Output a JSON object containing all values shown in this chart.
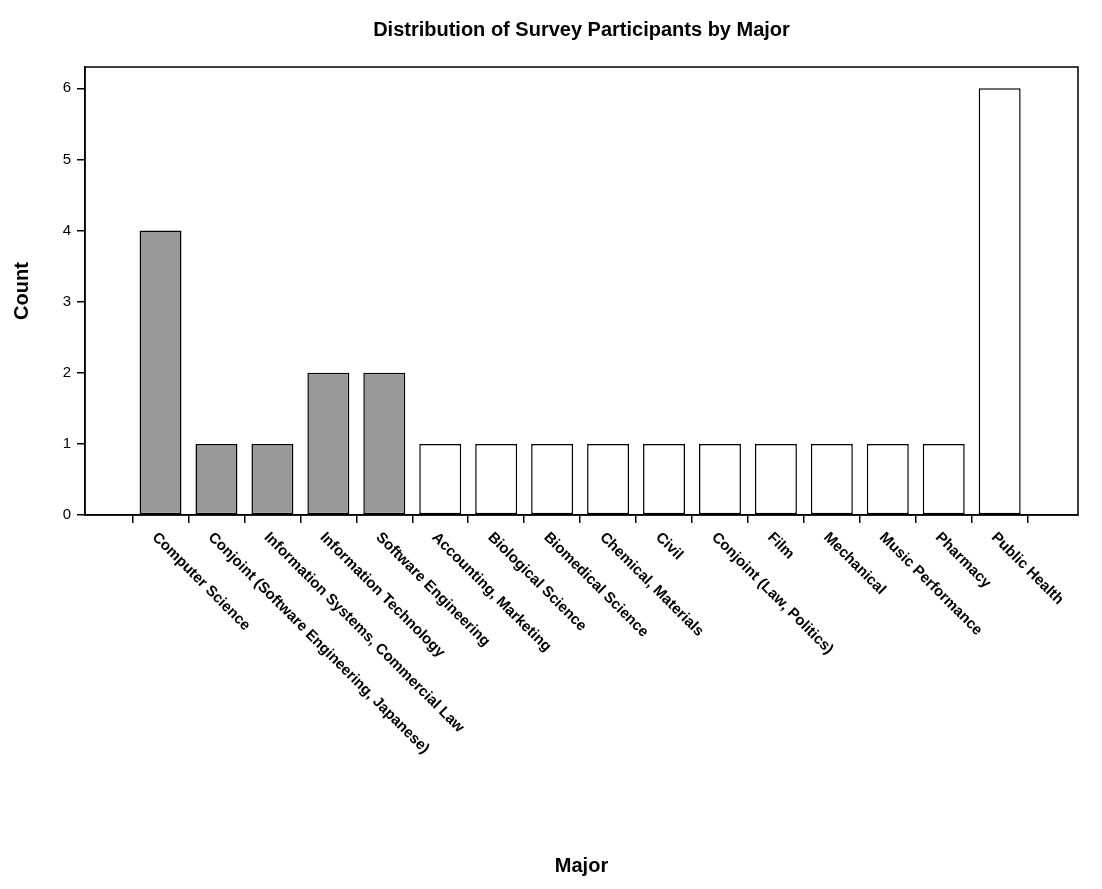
{
  "chart_data": {
    "type": "bar",
    "title": "Distribution of Survey Participants by Major",
    "xlabel": "Major",
    "ylabel": "Count",
    "categories": [
      "Computer Science",
      "Conjoint (Software Engineering, Japanese)",
      "Information Systems, Commercial Law",
      "Information Technology",
      "Software Engineering",
      "Accounting, Marketing",
      "Biological Science",
      "Biomedical Science",
      "Chemical, Materials",
      "Civil",
      "Conjoint (Law, Politics)",
      "Film",
      "Mechanical",
      "Music Performance",
      "Pharmacy",
      "Public Health"
    ],
    "values": [
      4,
      1,
      1,
      2,
      2,
      1,
      1,
      1,
      1,
      1,
      1,
      1,
      1,
      1,
      1,
      6
    ],
    "colors": [
      "#999999",
      "#999999",
      "#999999",
      "#999999",
      "#999999",
      "#ffffff",
      "#ffffff",
      "#ffffff",
      "#ffffff",
      "#ffffff",
      "#ffffff",
      "#ffffff",
      "#ffffff",
      "#ffffff",
      "#ffffff",
      "#ffffff"
    ],
    "ylim": [
      0,
      6.3
    ],
    "yticks": [
      0,
      1,
      2,
      3,
      4,
      5,
      6
    ],
    "grid": false,
    "legend": false
  }
}
